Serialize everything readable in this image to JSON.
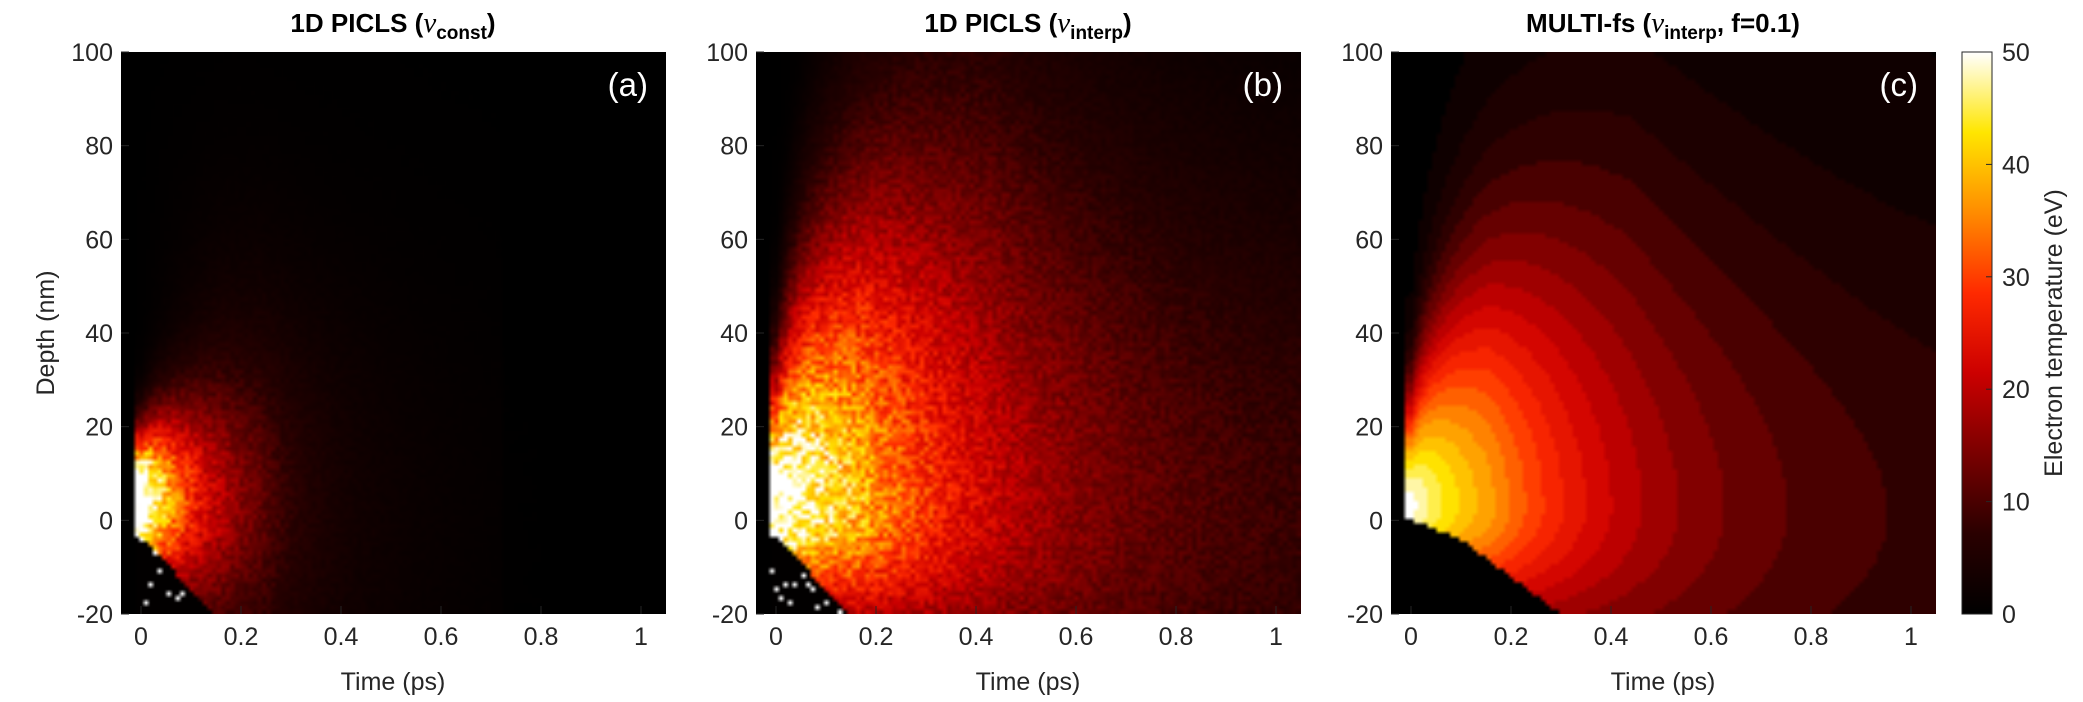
{
  "chart_data": [
    {
      "type": "heatmap",
      "panel_label": "(a)",
      "title_prefix": "1D PICLS (",
      "title_symbol": "ν",
      "title_subscript": "const",
      "title_suffix": ")",
      "xlabel": "Time (ps)",
      "ylabel": "Depth (nm)",
      "xlim": [
        -0.04,
        1.05
      ],
      "ylim": [
        -20,
        100
      ],
      "xticks": [
        "0",
        "0.2",
        "0.4",
        "0.6",
        "0.8",
        "1"
      ],
      "yticks": [
        "-20",
        "0",
        "20",
        "40",
        "60",
        "80",
        "100"
      ],
      "field": "noisy",
      "peak": {
        "time": 0.04,
        "depth": 5,
        "temperature": 50
      },
      "heated_extent_nm": 25,
      "tail_end_ps": 0.72,
      "diffusion": "low"
    },
    {
      "type": "heatmap",
      "panel_label": "(b)",
      "title_prefix": "1D PICLS (",
      "title_symbol": "ν",
      "title_subscript": "interp",
      "title_suffix": ")",
      "xlabel": "Time (ps)",
      "ylabel": "",
      "xlim": [
        -0.04,
        1.05
      ],
      "ylim": [
        -20,
        100
      ],
      "xticks": [
        "0",
        "0.2",
        "0.4",
        "0.6",
        "0.8",
        "1"
      ],
      "yticks": [
        "-20",
        "0",
        "20",
        "40",
        "60",
        "80",
        "100"
      ],
      "field": "noisy",
      "peak": {
        "time": 0.04,
        "depth": 3,
        "temperature": 42
      },
      "heated_extent_nm": 90,
      "tail_end_ps": 1.05,
      "diffusion": "high"
    },
    {
      "type": "heatmap",
      "panel_label": "(c)",
      "title_prefix": "MULTI-fs (",
      "title_symbol": "ν",
      "title_subscript": "interp",
      "title_suffix": ", f=0.1)",
      "xlabel": "Time (ps)",
      "ylabel": "",
      "xlim": [
        -0.04,
        1.05
      ],
      "ylim": [
        -20,
        100
      ],
      "xticks": [
        "0",
        "0.2",
        "0.4",
        "0.6",
        "0.8",
        "1"
      ],
      "yticks": [
        "-20",
        "0",
        "20",
        "40",
        "60",
        "80",
        "100"
      ],
      "field": "smooth-banded",
      "peak": {
        "time": 0.03,
        "depth": 3,
        "temperature": 38
      },
      "heated_extent_nm": 75,
      "tail_end_ps": 1.05,
      "surface_recession": {
        "time_ps": [
          -0.04,
          0,
          0.1,
          0.2,
          0.3
        ],
        "depth_nm": [
          0,
          0,
          -4,
          -12,
          -20
        ]
      }
    }
  ],
  "colorbar": {
    "label": "Electron temperature (eV)",
    "range": [
      0,
      50
    ],
    "ticks": [
      "0",
      "10",
      "20",
      "30",
      "40",
      "50"
    ],
    "colormap": "hot",
    "stops": [
      "#000000",
      "#2a0000",
      "#7a0000",
      "#cc0000",
      "#ff2a00",
      "#ff8c00",
      "#ffe600",
      "#ffffff"
    ]
  }
}
